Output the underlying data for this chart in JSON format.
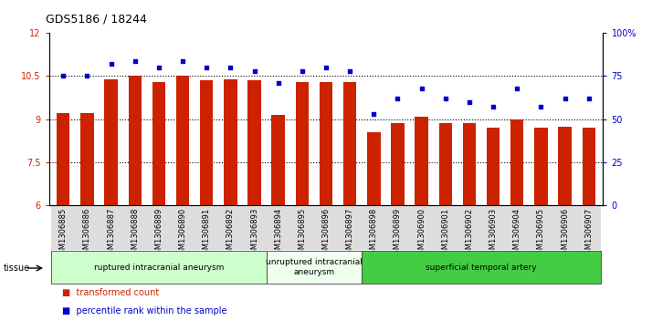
{
  "title": "GDS5186 / 18244",
  "samples": [
    "GSM1306885",
    "GSM1306886",
    "GSM1306887",
    "GSM1306888",
    "GSM1306889",
    "GSM1306890",
    "GSM1306891",
    "GSM1306892",
    "GSM1306893",
    "GSM1306894",
    "GSM1306895",
    "GSM1306896",
    "GSM1306897",
    "GSM1306898",
    "GSM1306899",
    "GSM1306900",
    "GSM1306901",
    "GSM1306902",
    "GSM1306903",
    "GSM1306904",
    "GSM1306905",
    "GSM1306906",
    "GSM1306907"
  ],
  "bar_values": [
    9.2,
    9.2,
    10.4,
    10.5,
    10.3,
    10.5,
    10.35,
    10.4,
    10.35,
    9.15,
    10.3,
    10.3,
    10.3,
    8.55,
    8.85,
    9.1,
    8.85,
    8.85,
    8.7,
    9.0,
    8.7,
    8.75,
    8.7
  ],
  "dot_values": [
    75,
    75,
    82,
    84,
    80,
    84,
    80,
    80,
    78,
    71,
    78,
    80,
    78,
    53,
    62,
    68,
    62,
    60,
    57,
    68,
    57,
    62,
    62
  ],
  "bar_color": "#cc2200",
  "dot_color": "#0000cc",
  "ylim_left": [
    6,
    12
  ],
  "ylim_right": [
    0,
    100
  ],
  "yticks_left": [
    6,
    7.5,
    9,
    10.5,
    12
  ],
  "yticks_right": [
    0,
    25,
    50,
    75,
    100
  ],
  "ytick_labels_left": [
    "6",
    "7.5",
    "9",
    "10.5",
    "12"
  ],
  "ytick_labels_right": [
    "0",
    "25",
    "50",
    "75",
    "100%"
  ],
  "groups": [
    {
      "label": "ruptured intracranial aneurysm",
      "start": 0,
      "end": 9,
      "color": "#ccffcc"
    },
    {
      "label": "unruptured intracranial\naneurysm",
      "start": 9,
      "end": 13,
      "color": "#eeffee"
    },
    {
      "label": "superficial temporal artery",
      "start": 13,
      "end": 23,
      "color": "#44cc44"
    }
  ],
  "tissue_label": "tissue",
  "legend_items": [
    {
      "label": "transformed count",
      "color": "#cc2200",
      "marker": "s"
    },
    {
      "label": "percentile rank within the sample",
      "color": "#0000cc",
      "marker": "s"
    }
  ],
  "bg_color": "#ffffff",
  "plot_bg_color": "#ffffff",
  "dotted_line_color": "#000000",
  "dotted_lines": [
    7.5,
    9.0,
    10.5
  ],
  "title_fontsize": 9,
  "tick_fontsize": 7,
  "bar_width": 0.55,
  "xtick_bg": "#dddddd"
}
